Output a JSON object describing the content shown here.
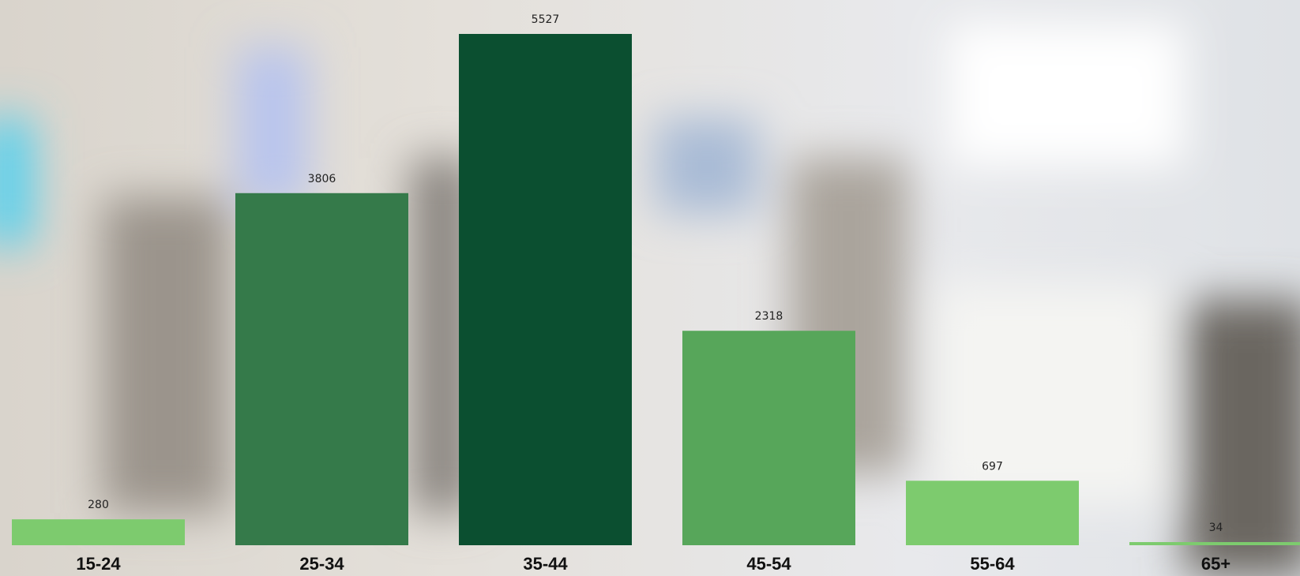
{
  "chart_data": {
    "type": "bar",
    "categories": [
      "15-24",
      "25-34",
      "35-44",
      "45-54",
      "55-64",
      "65+"
    ],
    "values": [
      280,
      3806,
      5527,
      2318,
      697,
      34
    ],
    "colors": [
      "#7dcb6e",
      "#357a4a",
      "#0b4f30",
      "#57a65a",
      "#7dcb6e",
      "#7dcb6e"
    ]
  }
}
